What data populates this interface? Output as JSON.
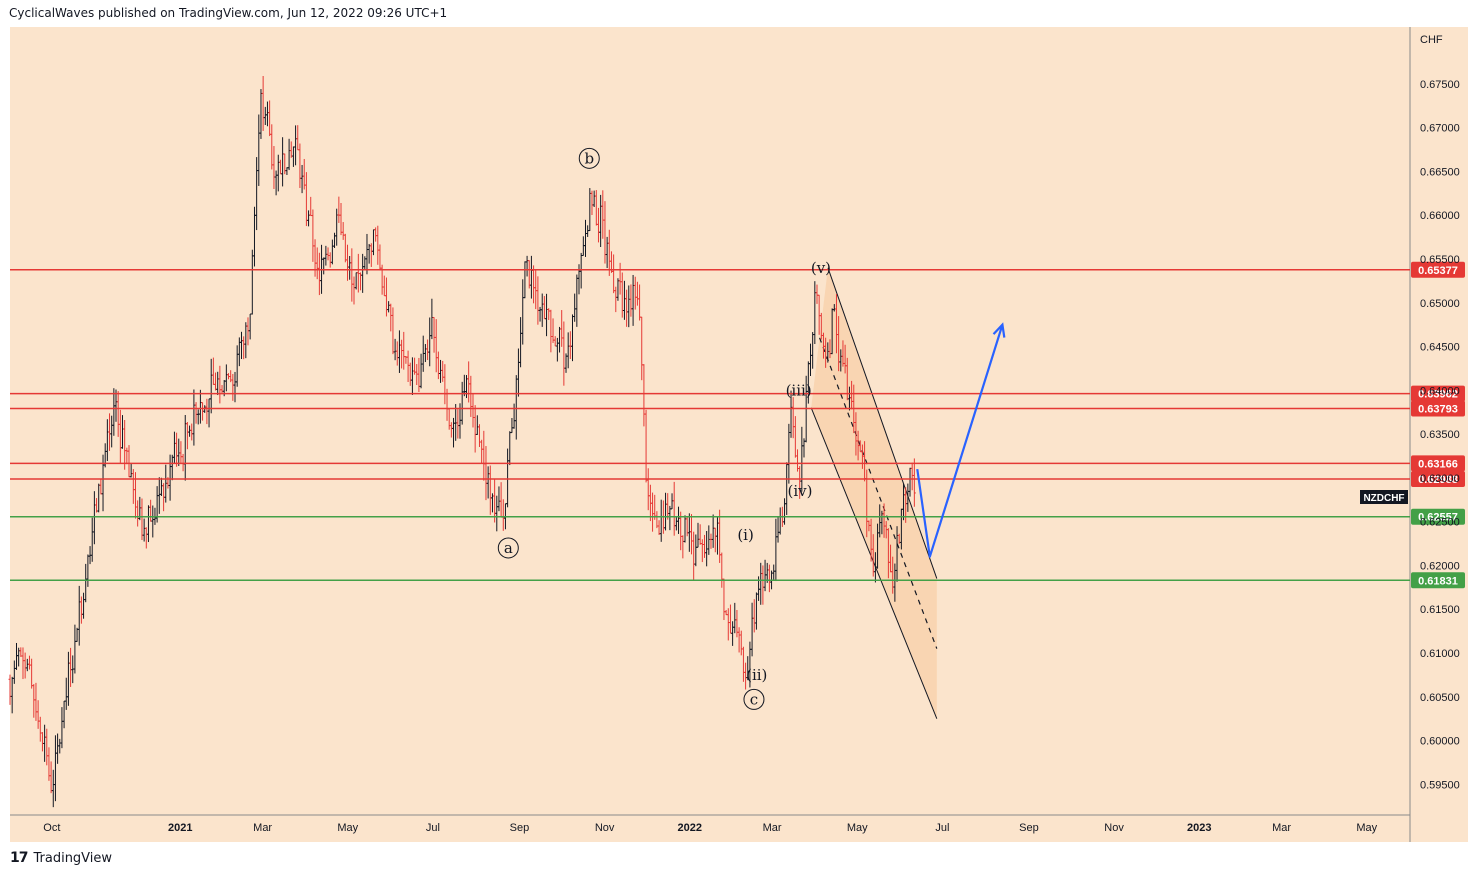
{
  "header": {
    "text": "CyclicalWaves published on TradingView.com, Jun 12, 2022 09:26 UTC+1"
  },
  "footer": {
    "logo": "17",
    "brand": "TradingView"
  },
  "colors": {
    "background": "#fbe4cc",
    "up_bar": "#131722",
    "down_bar": "#e53935",
    "resistance": "#e53935",
    "support": "#43a047",
    "projection": "#2962ff",
    "channel_fill": "#f8cfa6"
  },
  "chart_data": {
    "type": "bar",
    "symbol": "NZDCHF",
    "currency_label": "CHF",
    "x_labels": [
      "Oct",
      "2021",
      "Mar",
      "May",
      "Jul",
      "Sep",
      "Nov",
      "2022",
      "Mar",
      "May",
      "Jul",
      "Sep",
      "Nov",
      "2023",
      "Mar",
      "May"
    ],
    "y_ticks": [
      "0.67500",
      "0.67000",
      "0.66500",
      "0.66000",
      "0.65500",
      "0.65000",
      "0.64500",
      "0.64000",
      "0.63500",
      "0.63000",
      "0.62500",
      "0.62000",
      "0.61500",
      "0.61000",
      "0.60500",
      "0.60000",
      "0.59500"
    ],
    "ylim": [
      0.5915,
      0.6815
    ],
    "price_path": [
      {
        "date": "2020-09-01",
        "price": 0.607
      },
      {
        "date": "2020-09-08",
        "price": 0.611
      },
      {
        "date": "2020-09-20",
        "price": 0.603
      },
      {
        "date": "2020-10-01",
        "price": 0.5955
      },
      {
        "date": "2020-10-15",
        "price": 0.609
      },
      {
        "date": "2020-11-01",
        "price": 0.627
      },
      {
        "date": "2020-11-15",
        "price": 0.637
      },
      {
        "date": "2020-12-05",
        "price": 0.625
      },
      {
        "date": "2021-01-01",
        "price": 0.633
      },
      {
        "date": "2021-01-20",
        "price": 0.639
      },
      {
        "date": "2021-02-10",
        "price": 0.642
      },
      {
        "date": "2021-02-20",
        "price": 0.65
      },
      {
        "date": "2021-02-27",
        "price": 0.674
      },
      {
        "date": "2021-03-10",
        "price": 0.666
      },
      {
        "date": "2021-03-25",
        "price": 0.669
      },
      {
        "date": "2021-04-10",
        "price": 0.652
      },
      {
        "date": "2021-04-25",
        "price": 0.66
      },
      {
        "date": "2021-05-05",
        "price": 0.65
      },
      {
        "date": "2021-05-20",
        "price": 0.659
      },
      {
        "date": "2021-06-05",
        "price": 0.644
      },
      {
        "date": "2021-06-20",
        "price": 0.64
      },
      {
        "date": "2021-07-01",
        "price": 0.647
      },
      {
        "date": "2021-07-15",
        "price": 0.636
      },
      {
        "date": "2021-07-25",
        "price": 0.641
      },
      {
        "date": "2021-08-10",
        "price": 0.63
      },
      {
        "date": "2021-08-20",
        "price": 0.624
      },
      {
        "date": "2021-09-05",
        "price": 0.653
      },
      {
        "date": "2021-09-20",
        "price": 0.65
      },
      {
        "date": "2021-10-05",
        "price": 0.642
      },
      {
        "date": "2021-10-22",
        "price": 0.663
      },
      {
        "date": "2021-11-05",
        "price": 0.655
      },
      {
        "date": "2021-11-15",
        "price": 0.649
      },
      {
        "date": "2021-11-25",
        "price": 0.651
      },
      {
        "date": "2021-12-01",
        "price": 0.629
      },
      {
        "date": "2021-12-10",
        "price": 0.624
      },
      {
        "date": "2021-12-20",
        "price": 0.627
      },
      {
        "date": "2022-01-05",
        "price": 0.622
      },
      {
        "date": "2022-01-20",
        "price": 0.625
      },
      {
        "date": "2022-01-28",
        "price": 0.611
      },
      {
        "date": "2022-02-05",
        "price": 0.614
      },
      {
        "date": "2022-02-10",
        "price": 0.6075
      },
      {
        "date": "2022-02-20",
        "price": 0.62
      },
      {
        "date": "2022-03-01",
        "price": 0.618
      },
      {
        "date": "2022-03-10",
        "price": 0.628
      },
      {
        "date": "2022-03-15",
        "price": 0.639
      },
      {
        "date": "2022-03-20",
        "price": 0.63
      },
      {
        "date": "2022-04-01",
        "price": 0.65
      },
      {
        "date": "2022-04-08",
        "price": 0.645
      },
      {
        "date": "2022-04-15",
        "price": 0.648
      },
      {
        "date": "2022-04-25",
        "price": 0.638
      },
      {
        "date": "2022-05-05",
        "price": 0.632
      },
      {
        "date": "2022-05-12",
        "price": 0.62
      },
      {
        "date": "2022-05-20",
        "price": 0.627
      },
      {
        "date": "2022-05-26",
        "price": 0.618
      },
      {
        "date": "2022-06-05",
        "price": 0.628
      },
      {
        "date": "2022-06-10",
        "price": 0.63
      },
      {
        "date": "2022-06-12",
        "price": 0.6255
      }
    ],
    "horizontal_levels": [
      {
        "value": 0.65377,
        "label": "0.65377",
        "kind": "resistance"
      },
      {
        "value": 0.63962,
        "label": "0.63962",
        "kind": "resistance"
      },
      {
        "value": 0.63793,
        "label": "0.63793",
        "kind": "resistance"
      },
      {
        "value": 0.63166,
        "label": "0.63166",
        "kind": "resistance"
      },
      {
        "value": 0.62988,
        "label": "0.62988",
        "kind": "resistance"
      },
      {
        "value": 0.62557,
        "label": "0.62557",
        "kind": "support"
      },
      {
        "value": 0.61831,
        "label": "0.61831",
        "kind": "support"
      }
    ],
    "wave_labels": [
      {
        "text": "a",
        "circled": true,
        "date": "2021-08-24",
        "price": 0.622
      },
      {
        "text": "b",
        "circled": true,
        "date": "2021-10-21",
        "price": 0.6665
      },
      {
        "text": "c",
        "circled": true,
        "date": "2022-02-16",
        "price": 0.6047
      },
      {
        "text": "(i)",
        "circled": false,
        "date": "2022-02-10",
        "price": 0.6235
      },
      {
        "text": "(ii)",
        "circled": false,
        "date": "2022-02-18",
        "price": 0.6075
      },
      {
        "text": "(iii)",
        "circled": false,
        "date": "2022-03-20",
        "price": 0.64
      },
      {
        "text": "(iv)",
        "circled": false,
        "date": "2022-03-21",
        "price": 0.6285
      },
      {
        "text": "(v)",
        "circled": false,
        "date": "2022-04-05",
        "price": 0.654
      }
    ],
    "channel": {
      "upper": [
        {
          "date": "2022-04-10",
          "price": 0.654
        },
        {
          "date": "2022-06-27",
          "price": 0.6185
        }
      ],
      "lower": [
        {
          "date": "2022-03-29",
          "price": 0.638
        },
        {
          "date": "2022-06-27",
          "price": 0.6025
        }
      ],
      "midline": [
        {
          "date": "2022-04-04",
          "price": 0.646
        },
        {
          "date": "2022-06-27",
          "price": 0.6105
        }
      ]
    },
    "projection": [
      {
        "date": "2022-06-13",
        "price": 0.631
      },
      {
        "date": "2022-06-22",
        "price": 0.621
      },
      {
        "date": "2022-08-13",
        "price": 0.6475
      }
    ]
  }
}
